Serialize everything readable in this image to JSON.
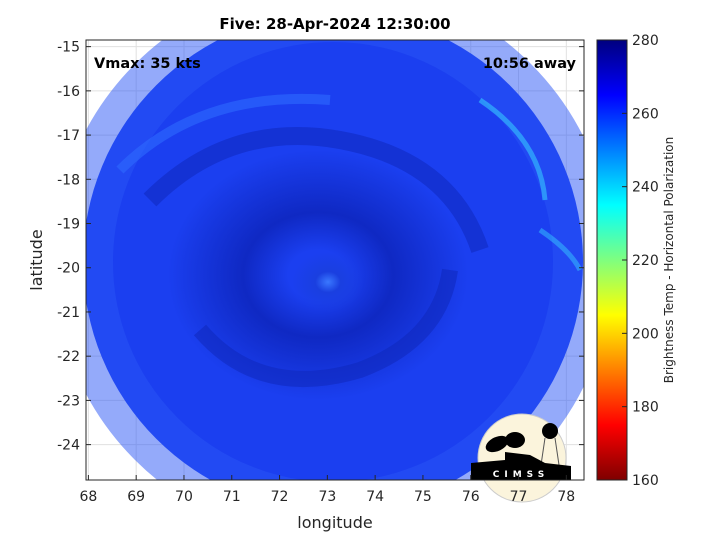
{
  "title": "Five: 28-Apr-2024 12:30:00",
  "annotations": {
    "vmax": "Vmax: 35 kts",
    "time_away": "10:56 away"
  },
  "axes": {
    "xlabel": "longitude",
    "ylabel": "latitude",
    "xticks": [
      "68",
      "69",
      "70",
      "71",
      "72",
      "73",
      "74",
      "75",
      "76",
      "77",
      "78"
    ],
    "yticks": [
      "-15",
      "-16",
      "-17",
      "-18",
      "-19",
      "-20",
      "-21",
      "-22",
      "-23",
      "-24"
    ],
    "xlim": [
      67.95,
      78.37
    ],
    "ylim": [
      -24.8,
      -14.85
    ],
    "grid": true
  },
  "colorbar": {
    "label": "Brightness Temp - Horizontal Polarization",
    "ticks": [
      "280",
      "260",
      "240",
      "220",
      "200",
      "180",
      "160"
    ],
    "range": [
      160,
      280
    ],
    "colormap": "jet",
    "colors": [
      "#7f0000",
      "#ff0000",
      "#ffff00",
      "#00ffff",
      "#0000ff",
      "#00007f"
    ]
  },
  "logo": {
    "text": "CIMSS"
  },
  "storm_center": {
    "lon": 73.0,
    "lat": -20.2
  }
}
